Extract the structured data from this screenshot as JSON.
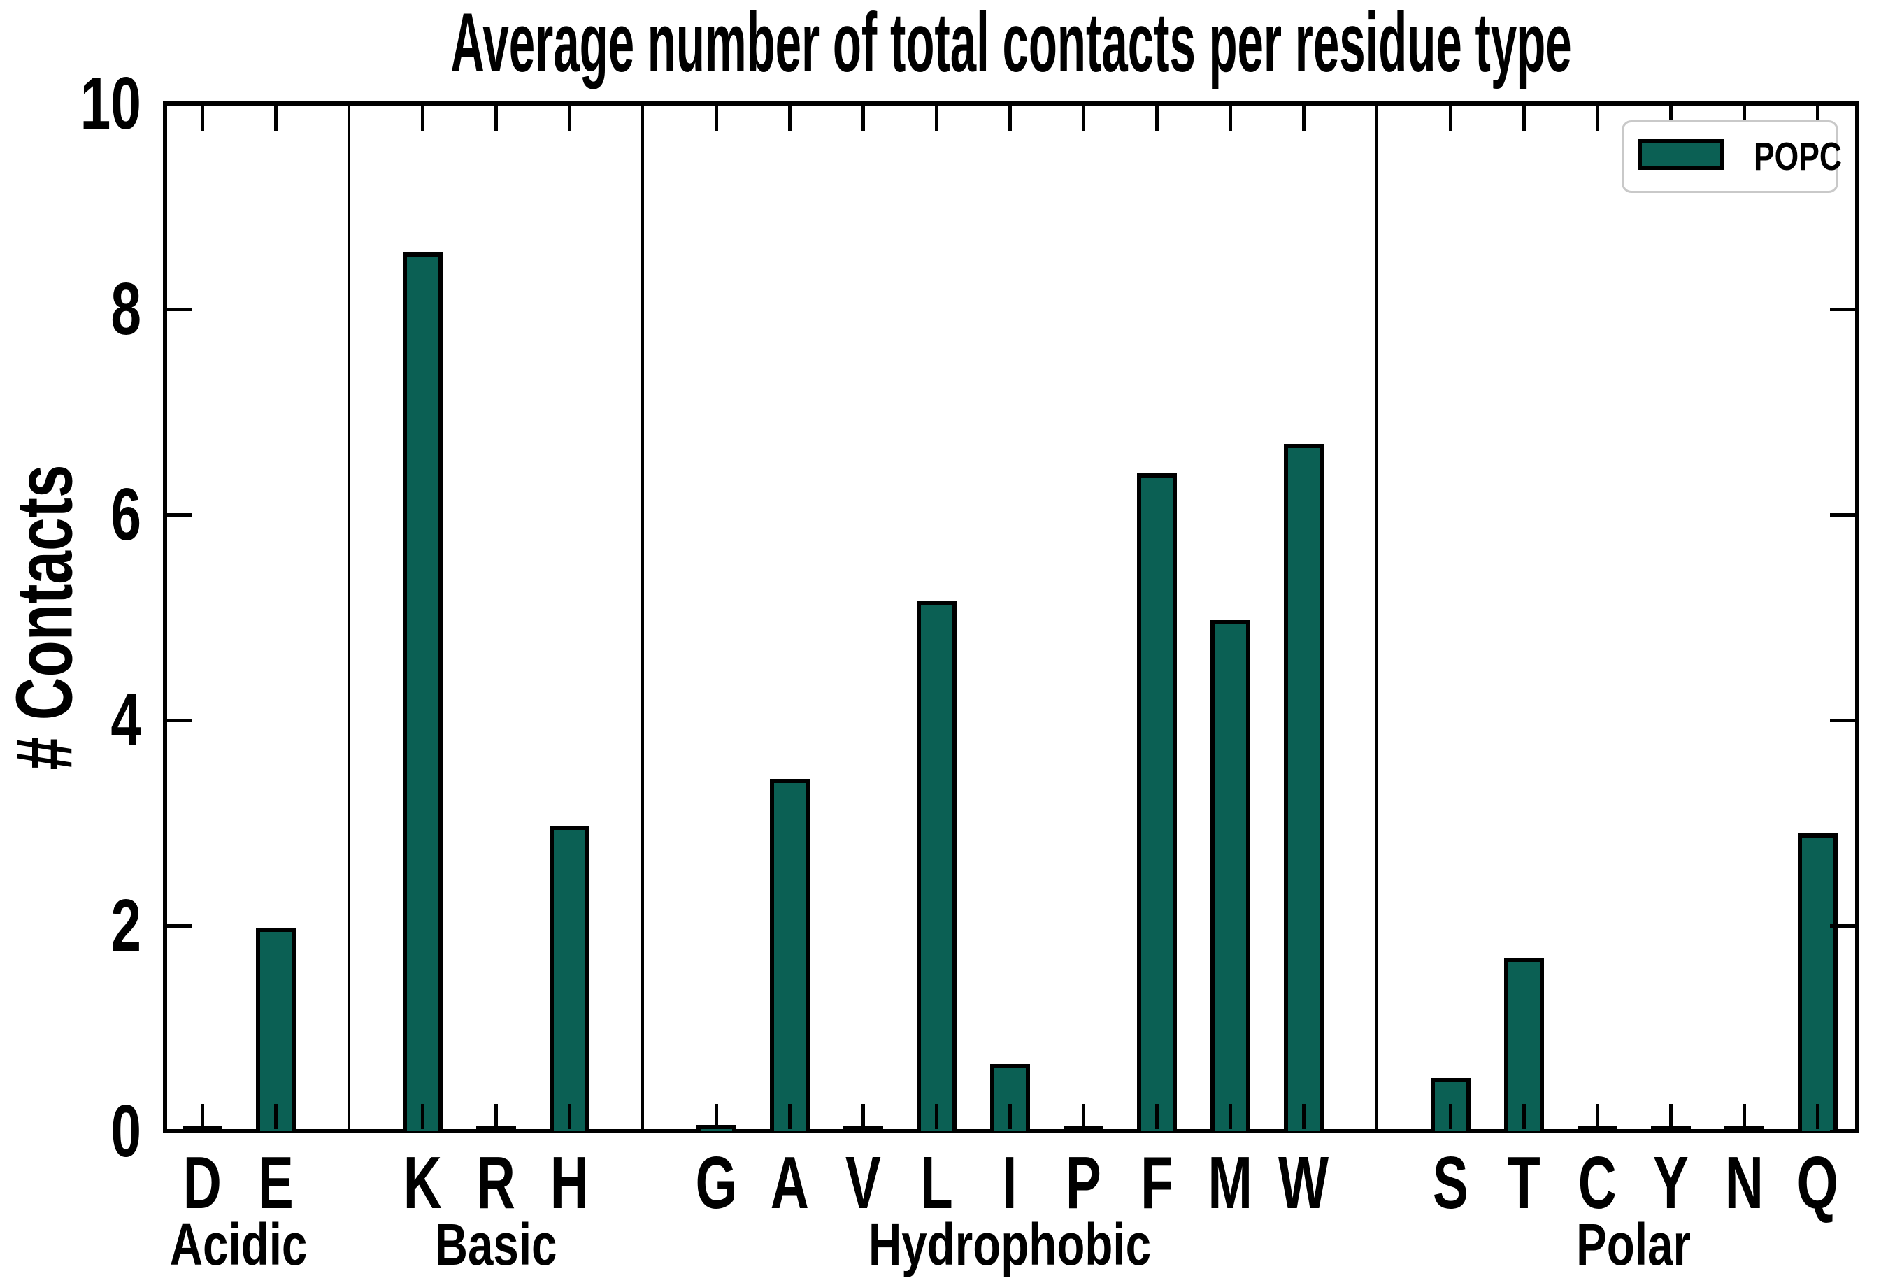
{
  "title": "Average number of total contacts per residue type",
  "ylabel": "# Contacts",
  "legend": {
    "label": "POPC"
  },
  "colors": {
    "bar_fill": "#0b6054",
    "bar_edge": "#000000",
    "axis": "#000000",
    "legend_border": "#c9c9c9",
    "background": "#ffffff"
  },
  "chart_data": {
    "type": "bar",
    "title": "Average number of total contacts per residue type",
    "xlabel": "",
    "ylabel": "# Contacts",
    "ylim": [
      0,
      10
    ],
    "yticks": [
      0,
      2,
      4,
      6,
      8,
      10
    ],
    "grid": false,
    "legend_position": "upper right",
    "series_name": "POPC",
    "groups": [
      {
        "label": "Acidic",
        "categories": [
          "D",
          "E"
        ],
        "values": [
          0.0,
          1.98
        ]
      },
      {
        "label": "Basic",
        "categories": [
          "K",
          "R",
          "H"
        ],
        "values": [
          8.55,
          0.0,
          2.97
        ]
      },
      {
        "label": "Hydrophobic",
        "categories": [
          "G",
          "A",
          "V",
          "L",
          "I",
          "P",
          "F",
          "M",
          "W"
        ],
        "values": [
          0.06,
          3.43,
          0.0,
          5.16,
          0.65,
          0.0,
          6.4,
          4.97,
          6.69
        ]
      },
      {
        "label": "Polar",
        "categories": [
          "S",
          "T",
          "C",
          "Y",
          "N",
          "Q"
        ],
        "values": [
          0.52,
          1.69,
          0.0,
          0.0,
          0.0,
          2.9
        ]
      }
    ]
  }
}
